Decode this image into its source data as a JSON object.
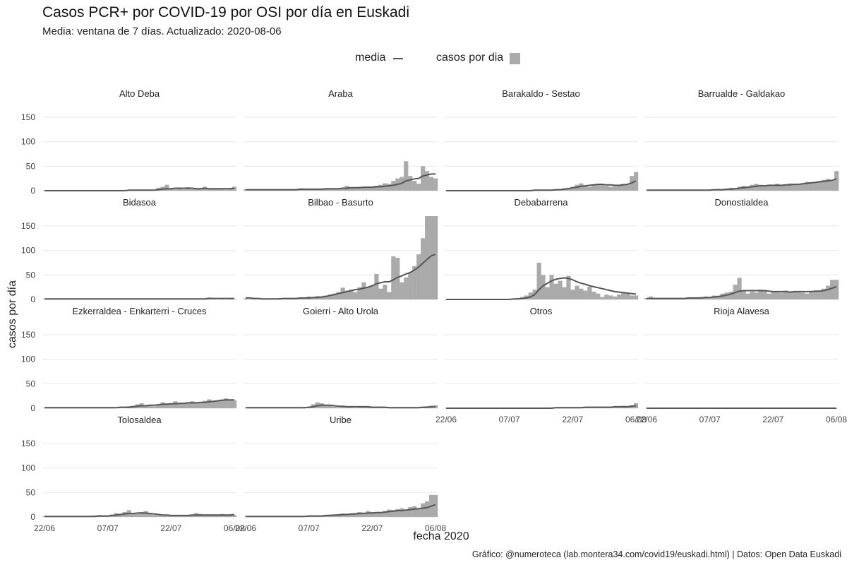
{
  "title": "Casos PCR+ por COVID-19 por OSI por día en Euskadi",
  "subtitle": "Media: ventana de 7 días. Actualizado: 2020-08-06",
  "caption": "Gráfico: @numeroteca (lab.montera34.com/covid19/euskadi.html) | Datos: Open Data Euskadi",
  "legend": {
    "line_label": "media",
    "bar_label": "casos por dia"
  },
  "colors": {
    "bars": "#aaaaaa",
    "line": "#555555",
    "grid": "#ebebeb"
  },
  "chart_data": {
    "type": "bar",
    "xlabel": "fecha 2020",
    "ylabel": "casos por día",
    "x_start": "2020-06-22",
    "x_end": "2020-08-06",
    "xticks": [
      "22/06",
      "07/07",
      "22/07",
      "06/08"
    ],
    "yticks": [
      0,
      50,
      100,
      150
    ],
    "ylim": [
      0,
      170
    ],
    "grid": true,
    "legend_position": "top",
    "series_types": {
      "bars": "casos por dia",
      "line": "media"
    },
    "panels": [
      {
        "name": "Alto Deba",
        "bars": [
          0,
          0,
          0,
          0,
          0,
          0,
          0,
          0,
          0,
          0,
          0,
          0,
          0,
          1,
          0,
          0,
          1,
          0,
          0,
          1,
          0,
          0,
          0,
          1,
          0,
          1,
          1,
          6,
          8,
          12,
          4,
          3,
          5,
          3,
          7,
          3,
          5,
          3,
          8,
          3,
          3,
          5,
          5,
          2,
          4,
          8
        ],
        "line": [
          0,
          0,
          0,
          0,
          0,
          0,
          0,
          0,
          0,
          0,
          0,
          0,
          0,
          0,
          0,
          0,
          0,
          0,
          0,
          0,
          1,
          1,
          1,
          1,
          1,
          1,
          1,
          2,
          3,
          4,
          4,
          5,
          5,
          5,
          5,
          5,
          4,
          4,
          5,
          4,
          4,
          4,
          4,
          4,
          4,
          5
        ]
      },
      {
        "name": "Araba",
        "bars": [
          3,
          2,
          2,
          1,
          2,
          1,
          2,
          1,
          2,
          1,
          2,
          3,
          2,
          5,
          4,
          3,
          2,
          4,
          3,
          4,
          5,
          4,
          5,
          6,
          10,
          7,
          6,
          8,
          7,
          6,
          8,
          10,
          12,
          15,
          14,
          20,
          25,
          28,
          60,
          30,
          20,
          14,
          50,
          40,
          28,
          25
        ],
        "line": [
          2,
          2,
          2,
          2,
          2,
          2,
          2,
          2,
          2,
          2,
          2,
          2,
          2,
          3,
          3,
          3,
          3,
          3,
          3,
          4,
          4,
          4,
          4,
          5,
          5,
          6,
          6,
          6,
          7,
          7,
          7,
          8,
          8,
          9,
          10,
          11,
          13,
          15,
          20,
          22,
          24,
          25,
          30,
          32,
          34,
          34
        ]
      },
      {
        "name": "Barakaldo - Sestao",
        "bars": [
          0,
          0,
          0,
          0,
          0,
          0,
          0,
          1,
          0,
          0,
          0,
          1,
          0,
          0,
          1,
          0,
          1,
          1,
          0,
          0,
          1,
          1,
          0,
          1,
          0,
          1,
          2,
          3,
          5,
          6,
          8,
          12,
          15,
          10,
          8,
          12,
          14,
          13,
          10,
          8,
          9,
          10,
          14,
          12,
          30,
          38
        ],
        "line": [
          0,
          0,
          0,
          0,
          0,
          0,
          0,
          0,
          0,
          0,
          0,
          0,
          0,
          0,
          0,
          0,
          0,
          0,
          0,
          0,
          0,
          1,
          1,
          1,
          1,
          1,
          2,
          2,
          3,
          4,
          6,
          7,
          9,
          10,
          11,
          12,
          13,
          13,
          12,
          12,
          11,
          11,
          12,
          13,
          16,
          20
        ]
      },
      {
        "name": "Barrualde - Galdakao",
        "bars": [
          0,
          1,
          0,
          1,
          0,
          0,
          1,
          0,
          1,
          0,
          0,
          1,
          1,
          1,
          0,
          1,
          2,
          3,
          2,
          4,
          6,
          5,
          8,
          10,
          7,
          12,
          14,
          12,
          9,
          12,
          10,
          14,
          11,
          12,
          15,
          14,
          13,
          15,
          18,
          17,
          16,
          20,
          22,
          24,
          20,
          40
        ],
        "line": [
          1,
          1,
          1,
          1,
          1,
          1,
          1,
          1,
          1,
          1,
          1,
          1,
          1,
          1,
          1,
          1,
          2,
          2,
          2,
          3,
          3,
          4,
          5,
          6,
          7,
          8,
          9,
          10,
          10,
          11,
          11,
          11,
          11,
          12,
          12,
          13,
          13,
          14,
          15,
          16,
          17,
          18,
          19,
          20,
          21,
          24
        ]
      },
      {
        "name": "Bidasoa",
        "bars": [
          0,
          0,
          0,
          0,
          0,
          0,
          0,
          0,
          0,
          0,
          0,
          0,
          0,
          0,
          0,
          0,
          0,
          0,
          0,
          0,
          0,
          0,
          0,
          0,
          0,
          0,
          0,
          0,
          0,
          0,
          0,
          0,
          0,
          0,
          0,
          0,
          0,
          0,
          0,
          4,
          2,
          0,
          1,
          0,
          1,
          1
        ],
        "line": [
          1,
          1,
          1,
          1,
          1,
          1,
          1,
          1,
          1,
          1,
          1,
          1,
          1,
          1,
          1,
          1,
          1,
          1,
          1,
          1,
          1,
          1,
          1,
          1,
          1,
          1,
          1,
          1,
          1,
          1,
          1,
          1,
          1,
          1,
          1,
          1,
          1,
          1,
          1,
          2,
          2,
          2,
          2,
          2,
          2,
          2
        ]
      },
      {
        "name": "Bilbao - Basurto",
        "bars": [
          2,
          1,
          1,
          0,
          0,
          0,
          1,
          2,
          3,
          2,
          2,
          3,
          3,
          4,
          3,
          6,
          4,
          7,
          5,
          8,
          10,
          12,
          15,
          24,
          18,
          20,
          15,
          25,
          35,
          25,
          28,
          52,
          22,
          30,
          15,
          88,
          85,
          35,
          45,
          55,
          68,
          92,
          125,
          170,
          170,
          170
        ],
        "line": [
          3,
          3,
          2,
          2,
          1,
          1,
          1,
          1,
          1,
          2,
          2,
          2,
          2,
          3,
          3,
          3,
          4,
          4,
          5,
          6,
          8,
          10,
          12,
          14,
          16,
          18,
          20,
          21,
          23,
          25,
          28,
          32,
          34,
          36,
          36,
          40,
          45,
          48,
          52,
          55,
          60,
          66,
          74,
          82,
          89,
          92
        ]
      },
      {
        "name": "Debabarrena",
        "bars": [
          0,
          0,
          0,
          0,
          0,
          0,
          0,
          0,
          0,
          0,
          0,
          0,
          0,
          0,
          0,
          1,
          2,
          3,
          5,
          8,
          14,
          20,
          75,
          50,
          25,
          50,
          32,
          38,
          25,
          48,
          20,
          28,
          22,
          18,
          26,
          16,
          12,
          5,
          10,
          8,
          6,
          10,
          14,
          12,
          8,
          8
        ],
        "line": [
          0,
          0,
          0,
          0,
          0,
          0,
          0,
          0,
          0,
          0,
          0,
          0,
          0,
          0,
          0,
          0,
          1,
          1,
          2,
          3,
          5,
          10,
          20,
          28,
          33,
          38,
          41,
          43,
          44,
          43,
          40,
          36,
          33,
          31,
          28,
          26,
          24,
          22,
          20,
          18,
          16,
          15,
          14,
          13,
          12,
          11
        ]
      },
      {
        "name": "Donostialdea",
        "bars": [
          3,
          6,
          2,
          2,
          3,
          2,
          1,
          1,
          2,
          3,
          3,
          4,
          3,
          5,
          6,
          4,
          8,
          6,
          12,
          14,
          16,
          30,
          44,
          18,
          12,
          16,
          14,
          20,
          18,
          12,
          15,
          16,
          14,
          18,
          15,
          16,
          17,
          14,
          12,
          15,
          18,
          16,
          22,
          28,
          40,
          40
        ],
        "line": [
          2,
          2,
          2,
          2,
          2,
          2,
          2,
          2,
          2,
          2,
          3,
          3,
          3,
          3,
          4,
          4,
          5,
          6,
          7,
          9,
          11,
          14,
          17,
          18,
          18,
          18,
          18,
          18,
          18,
          17,
          16,
          16,
          16,
          16,
          15,
          16,
          16,
          16,
          16,
          16,
          17,
          17,
          18,
          20,
          23,
          26
        ]
      },
      {
        "name": "Ezkerraldea - Enkarterri - Cruces",
        "bars": [
          0,
          0,
          0,
          0,
          0,
          0,
          0,
          0,
          0,
          0,
          0,
          1,
          1,
          0,
          1,
          0,
          1,
          2,
          1,
          2,
          4,
          5,
          8,
          10,
          6,
          5,
          4,
          8,
          12,
          10,
          8,
          14,
          10,
          9,
          12,
          14,
          10,
          12,
          15,
          18,
          14,
          16,
          18,
          20,
          18,
          16
        ],
        "line": [
          1,
          1,
          1,
          1,
          1,
          1,
          1,
          1,
          1,
          1,
          1,
          1,
          1,
          1,
          1,
          1,
          1,
          1,
          2,
          2,
          2,
          3,
          4,
          5,
          5,
          6,
          6,
          7,
          8,
          8,
          9,
          9,
          10,
          10,
          11,
          11,
          11,
          12,
          12,
          13,
          14,
          15,
          16,
          17,
          17,
          17
        ]
      },
      {
        "name": "Goierri - Alto Urola",
        "bars": [
          0,
          0,
          0,
          0,
          0,
          0,
          0,
          0,
          0,
          0,
          0,
          0,
          0,
          0,
          0,
          3,
          8,
          12,
          10,
          6,
          5,
          3,
          2,
          3,
          2,
          2,
          1,
          2,
          2,
          3,
          2,
          1,
          1,
          1,
          0,
          1,
          1,
          0,
          1,
          1,
          0,
          1,
          3,
          4,
          5,
          6
        ],
        "line": [
          1,
          1,
          1,
          1,
          1,
          1,
          1,
          1,
          1,
          1,
          1,
          1,
          1,
          1,
          1,
          2,
          3,
          5,
          6,
          6,
          6,
          5,
          4,
          4,
          3,
          3,
          3,
          3,
          3,
          3,
          2,
          2,
          2,
          2,
          1,
          1,
          1,
          1,
          1,
          1,
          1,
          1,
          2,
          2,
          3,
          3
        ]
      },
      {
        "name": "Otros",
        "bars": [
          0,
          0,
          0,
          0,
          0,
          0,
          0,
          0,
          0,
          0,
          0,
          0,
          0,
          0,
          0,
          0,
          0,
          0,
          0,
          0,
          0,
          0,
          0,
          0,
          1,
          0,
          1,
          1,
          1,
          2,
          1,
          1,
          2,
          2,
          1,
          2,
          3,
          2,
          3,
          3,
          2,
          4,
          5,
          3,
          6,
          10
        ],
        "line": [
          0,
          0,
          0,
          0,
          0,
          0,
          0,
          0,
          0,
          0,
          0,
          0,
          0,
          0,
          0,
          0,
          0,
          0,
          0,
          0,
          0,
          0,
          0,
          0,
          0,
          0,
          1,
          1,
          1,
          1,
          1,
          1,
          1,
          2,
          2,
          2,
          2,
          2,
          2,
          2,
          3,
          3,
          3,
          3,
          4,
          5
        ]
      },
      {
        "name": "Rioja Alavesa",
        "bars": [
          0,
          0,
          0,
          0,
          0,
          0,
          0,
          0,
          0,
          0,
          0,
          0,
          0,
          0,
          0,
          0,
          0,
          0,
          0,
          0,
          0,
          0,
          0,
          0,
          0,
          0,
          0,
          0,
          0,
          0,
          0,
          0,
          0,
          0,
          0,
          0,
          0,
          0,
          0,
          0,
          0,
          0,
          0,
          0,
          0,
          0
        ],
        "line": [
          0,
          0,
          0,
          0,
          0,
          0,
          0,
          0,
          0,
          0,
          0,
          0,
          0,
          0,
          0,
          0,
          0,
          0,
          0,
          0,
          0,
          0,
          0,
          0,
          0,
          0,
          0,
          0,
          0,
          0,
          0,
          0,
          0,
          0,
          0,
          0,
          0,
          0,
          0,
          0,
          0,
          0,
          0,
          0,
          0,
          0
        ]
      },
      {
        "name": "Tolosaldea",
        "bars": [
          1,
          0,
          0,
          0,
          0,
          0,
          0,
          0,
          0,
          0,
          0,
          2,
          3,
          4,
          3,
          2,
          5,
          8,
          6,
          10,
          14,
          8,
          6,
          10,
          12,
          8,
          4,
          3,
          2,
          2,
          3,
          2,
          2,
          3,
          4,
          5,
          8,
          6,
          4,
          3,
          4,
          5,
          6,
          5,
          4,
          4
        ],
        "line": [
          1,
          1,
          1,
          1,
          1,
          1,
          1,
          1,
          1,
          1,
          1,
          1,
          1,
          2,
          2,
          2,
          3,
          4,
          5,
          6,
          7,
          7,
          8,
          8,
          8,
          7,
          6,
          5,
          4,
          4,
          3,
          3,
          3,
          3,
          3,
          4,
          4,
          4,
          4,
          4,
          4,
          4,
          4,
          4,
          4,
          5
        ]
      },
      {
        "name": "Uribe",
        "bars": [
          0,
          1,
          0,
          1,
          0,
          0,
          1,
          0,
          1,
          0,
          1,
          1,
          2,
          1,
          2,
          3,
          2,
          3,
          2,
          4,
          5,
          4,
          6,
          7,
          5,
          6,
          8,
          10,
          9,
          12,
          10,
          8,
          9,
          12,
          15,
          14,
          16,
          18,
          15,
          20,
          22,
          18,
          28,
          32,
          45,
          45
        ],
        "line": [
          1,
          1,
          1,
          1,
          1,
          1,
          1,
          1,
          1,
          1,
          1,
          1,
          1,
          1,
          1,
          2,
          2,
          2,
          2,
          3,
          3,
          4,
          4,
          5,
          5,
          6,
          6,
          7,
          7,
          8,
          8,
          9,
          9,
          10,
          11,
          12,
          13,
          13,
          14,
          15,
          16,
          17,
          18,
          19,
          22,
          25
        ]
      }
    ]
  }
}
